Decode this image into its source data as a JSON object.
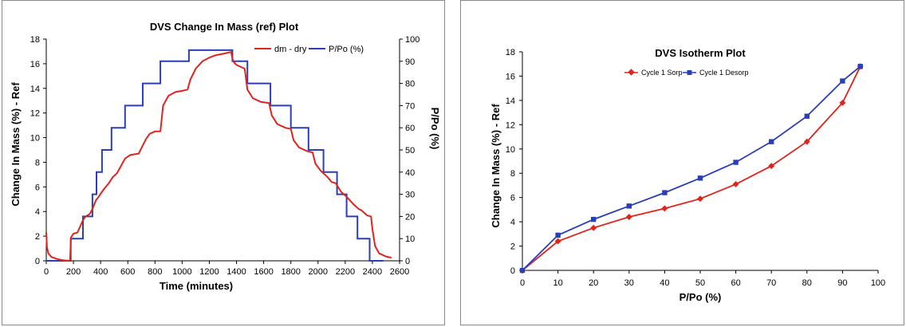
{
  "colors": {
    "red": "#e0231c",
    "blue": "#2a3fb6"
  },
  "chart_data": [
    {
      "type": "line",
      "title": "DVS Change In Mass (ref) Plot",
      "xlabel": "Time (minutes)",
      "ylabel": "Change In Mass (%) - Ref",
      "y2label": "P/Po (%)",
      "xlim": [
        0,
        2600
      ],
      "ylim": [
        0,
        18
      ],
      "y2lim": [
        0,
        100
      ],
      "xticks": [
        "0",
        "200",
        "400",
        "600",
        "800",
        "1000",
        "1200",
        "1400",
        "1600",
        "1800",
        "2000",
        "2200",
        "2400",
        "2600"
      ],
      "yticks": [
        "0",
        "2",
        "4",
        "6",
        "8",
        "10",
        "12",
        "14",
        "16",
        "18"
      ],
      "y2ticks": [
        "0",
        "10",
        "20",
        "30",
        "40",
        "50",
        "60",
        "70",
        "80",
        "90",
        "100"
      ],
      "grid": false,
      "legend_position": "top-right",
      "series": [
        {
          "name": "dm - dry",
          "axis": "left",
          "x": [
            0,
            5,
            15,
            40,
            80,
            120,
            175,
            182,
            200,
            230,
            270,
            290,
            320,
            340,
            365,
            385,
            410,
            430,
            460,
            490,
            520,
            550,
            580,
            620,
            680,
            735,
            760,
            800,
            840,
            860,
            900,
            950,
            1000,
            1040,
            1060,
            1100,
            1150,
            1200,
            1250,
            1300,
            1360,
            1375,
            1400,
            1460,
            1480,
            1520,
            1580,
            1640,
            1660,
            1700,
            1760,
            1800,
            1820,
            1860,
            1920,
            1960,
            1980,
            2020,
            2070,
            2100,
            2130,
            2170,
            2200,
            2210,
            2260,
            2300,
            2320,
            2360,
            2390,
            2400,
            2420,
            2450,
            2500,
            2540
          ],
          "y": [
            2.3,
            1.1,
            0.6,
            0.3,
            0.15,
            0.05,
            0.0,
            1.9,
            2.2,
            2.3,
            3.3,
            3.6,
            3.8,
            4.2,
            4.9,
            5.2,
            5.6,
            5.9,
            6.3,
            6.8,
            7.1,
            7.7,
            8.3,
            8.6,
            8.7,
            9.9,
            10.3,
            10.5,
            10.5,
            12.6,
            13.4,
            13.7,
            13.8,
            13.9,
            14.7,
            15.6,
            16.2,
            16.5,
            16.7,
            16.8,
            16.95,
            16.2,
            15.9,
            15.6,
            13.9,
            13.2,
            12.9,
            12.8,
            11.8,
            11.1,
            10.8,
            10.7,
            9.8,
            9.2,
            8.9,
            8.8,
            7.9,
            7.3,
            6.8,
            6.4,
            6.3,
            5.6,
            5.3,
            5.2,
            4.6,
            4.2,
            4.1,
            3.7,
            3.6,
            2.6,
            1.2,
            0.6,
            0.35,
            0.25
          ]
        },
        {
          "name": "P/Po (%)",
          "axis": "right",
          "x": [
            0,
            180,
            180,
            270,
            270,
            340,
            340,
            370,
            370,
            410,
            410,
            480,
            480,
            580,
            580,
            710,
            710,
            840,
            840,
            1050,
            1050,
            1370,
            1370,
            1480,
            1480,
            1650,
            1650,
            1800,
            1800,
            1930,
            1930,
            2040,
            2040,
            2140,
            2140,
            2210,
            2210,
            2290,
            2290,
            2380,
            2380,
            2480
          ],
          "y": [
            0,
            0,
            10,
            10,
            20,
            20,
            30,
            30,
            40,
            40,
            50,
            50,
            60,
            60,
            70,
            70,
            80,
            80,
            90,
            90,
            95,
            95,
            90,
            90,
            80,
            80,
            70,
            70,
            60,
            60,
            50,
            50,
            40,
            40,
            30,
            30,
            20,
            20,
            10,
            10,
            0,
            0
          ]
        }
      ]
    },
    {
      "type": "line",
      "title": "DVS Isotherm Plot",
      "xlabel": "P/Po (%)",
      "ylabel": "Change In Mass (%) - Ref",
      "xlim": [
        0,
        100
      ],
      "ylim": [
        0,
        18
      ],
      "xticks": [
        "0",
        "10",
        "20",
        "30",
        "40",
        "50",
        "60",
        "70",
        "80",
        "90",
        "100"
      ],
      "yticks": [
        "0",
        "2",
        "4",
        "6",
        "8",
        "10",
        "12",
        "14",
        "16",
        "18"
      ],
      "grid": false,
      "legend_position": "top-left",
      "series": [
        {
          "name": "Cycle 1 Sorp",
          "marker": "diamond",
          "x": [
            0,
            10,
            20,
            30,
            40,
            50,
            60,
            70,
            80,
            90,
            95
          ],
          "y": [
            0.0,
            2.4,
            3.5,
            4.4,
            5.1,
            5.9,
            7.1,
            8.6,
            10.6,
            13.8,
            16.8
          ]
        },
        {
          "name": "Cycle 1 Desorp",
          "marker": "square",
          "x": [
            0,
            10,
            20,
            30,
            40,
            50,
            60,
            70,
            80,
            90,
            95
          ],
          "y": [
            0.0,
            2.9,
            4.2,
            5.3,
            6.4,
            7.6,
            8.9,
            10.6,
            12.7,
            15.6,
            16.8
          ]
        }
      ]
    }
  ]
}
